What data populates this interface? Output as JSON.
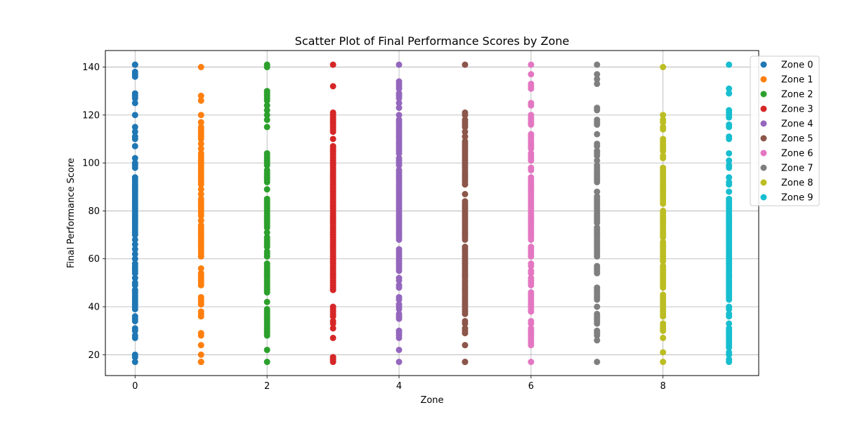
{
  "chart_data": {
    "type": "scatter",
    "title": "Scatter Plot of Final Performance Scores by Zone",
    "xlabel": "Zone",
    "ylabel": "Final Performance Score",
    "xlim": [
      -0.45,
      9.45
    ],
    "ylim": [
      11.3,
      146.9
    ],
    "xticks": [
      0,
      2,
      4,
      6,
      8
    ],
    "yticks": [
      20,
      40,
      60,
      80,
      100,
      120,
      140
    ],
    "grid": true,
    "legend_position": "outside-top-right",
    "series": [
      {
        "name": "Zone 0",
        "color": "#1f77b4",
        "x": 0,
        "y": [
          141,
          141,
          138,
          137,
          136,
          129,
          128,
          127,
          125,
          120,
          115,
          113,
          111,
          110,
          107,
          102,
          100,
          99,
          98,
          94,
          93,
          92,
          91,
          90,
          89,
          88,
          87,
          86,
          85,
          84,
          83,
          82,
          81,
          80,
          79,
          78,
          77,
          76,
          75,
          74,
          73,
          72,
          71,
          70,
          68,
          66,
          64,
          62,
          60,
          58,
          57,
          56,
          55,
          54,
          52,
          50,
          49,
          47,
          46,
          45,
          44,
          43,
          42,
          41,
          40,
          39,
          36,
          35,
          34,
          31,
          30,
          28,
          27,
          20,
          19,
          17
        ]
      },
      {
        "name": "Zone 1",
        "color": "#ff7f0e",
        "x": 1,
        "y": [
          140,
          128,
          126,
          120,
          117,
          115,
          114,
          113,
          112,
          111,
          110,
          108,
          106,
          104,
          103,
          102,
          101,
          100,
          99,
          98,
          97,
          96,
          95,
          94,
          93,
          92,
          91,
          89,
          87,
          85,
          84,
          83,
          82,
          81,
          80,
          79,
          78,
          76,
          74,
          73,
          72,
          71,
          70,
          69,
          68,
          67,
          66,
          65,
          64,
          63,
          62,
          61,
          56,
          54,
          53,
          52,
          51,
          50,
          49,
          44,
          43,
          42,
          41,
          38,
          37,
          36,
          29,
          28,
          24,
          20,
          17,
          17
        ]
      },
      {
        "name": "Zone 2",
        "color": "#2ca02c",
        "x": 2,
        "y": [
          141,
          140,
          130,
          129,
          128,
          127,
          126,
          124,
          122,
          120,
          118,
          115,
          104,
          103,
          102,
          101,
          100,
          99,
          97,
          96,
          95,
          94,
          93,
          92,
          89,
          85,
          84,
          83,
          82,
          81,
          80,
          79,
          78,
          77,
          76,
          75,
          74,
          73,
          71,
          69,
          68,
          67,
          66,
          65,
          63,
          62,
          61,
          58,
          57,
          56,
          55,
          54,
          53,
          52,
          51,
          50,
          49,
          48,
          47,
          46,
          42,
          39,
          38,
          37,
          36,
          35,
          34,
          33,
          32,
          31,
          30,
          29,
          28,
          22,
          17
        ]
      },
      {
        "name": "Zone 3",
        "color": "#d62728",
        "x": 3,
        "y": [
          141,
          132,
          121,
          120,
          119,
          118,
          117,
          116,
          115,
          114,
          113,
          110,
          107,
          106,
          105,
          104,
          103,
          102,
          101,
          100,
          99,
          98,
          97,
          96,
          95,
          94,
          93,
          92,
          91,
          90,
          89,
          88,
          87,
          86,
          85,
          84,
          83,
          82,
          81,
          80,
          79,
          78,
          77,
          76,
          75,
          74,
          73,
          72,
          71,
          70,
          69,
          68,
          67,
          66,
          65,
          64,
          63,
          62,
          61,
          60,
          59,
          58,
          57,
          56,
          55,
          54,
          53,
          52,
          51,
          50,
          49,
          48,
          47,
          40,
          39,
          38,
          37,
          36,
          34,
          33,
          31,
          27,
          19,
          18,
          17
        ]
      },
      {
        "name": "Zone 4",
        "color": "#9467bd",
        "x": 4,
        "y": [
          141,
          134,
          133,
          132,
          131,
          129,
          128,
          127,
          125,
          123,
          120,
          118,
          117,
          116,
          115,
          114,
          113,
          112,
          111,
          110,
          109,
          108,
          107,
          106,
          105,
          104,
          102,
          101,
          100,
          99,
          97,
          96,
          95,
          94,
          93,
          92,
          91,
          90,
          89,
          88,
          87,
          86,
          85,
          84,
          83,
          82,
          81,
          80,
          79,
          78,
          77,
          76,
          75,
          74,
          73,
          72,
          71,
          70,
          69,
          68,
          64,
          63,
          62,
          61,
          60,
          59,
          58,
          57,
          56,
          55,
          52,
          51,
          49,
          48,
          44,
          43,
          41,
          40,
          39,
          37,
          36,
          35,
          30,
          29,
          28,
          27,
          22,
          17
        ]
      },
      {
        "name": "Zone 5",
        "color": "#8c564b",
        "x": 5,
        "y": [
          141,
          121,
          120,
          118,
          117,
          116,
          115,
          113,
          111,
          109,
          108,
          107,
          106,
          105,
          104,
          103,
          102,
          101,
          100,
          99,
          98,
          97,
          96,
          95,
          94,
          93,
          92,
          91,
          87,
          84,
          83,
          82,
          81,
          80,
          79,
          78,
          77,
          76,
          75,
          74,
          73,
          72,
          71,
          70,
          69,
          68,
          65,
          64,
          63,
          62,
          61,
          60,
          59,
          58,
          57,
          56,
          55,
          54,
          53,
          52,
          51,
          50,
          49,
          48,
          47,
          46,
          45,
          44,
          43,
          42,
          41,
          40,
          39,
          38,
          37,
          34,
          33,
          31,
          30,
          29,
          24,
          17,
          17
        ]
      },
      {
        "name": "Zone 6",
        "color": "#e377c2",
        "x": 6,
        "y": [
          141,
          137,
          133,
          132,
          131,
          125,
          124,
          120,
          119,
          118,
          117,
          116,
          112,
          111,
          110,
          109,
          108,
          107,
          106,
          104,
          103,
          102,
          101,
          98,
          97,
          94,
          93,
          92,
          91,
          90,
          89,
          88,
          87,
          86,
          85,
          84,
          83,
          82,
          81,
          80,
          79,
          78,
          77,
          76,
          75,
          74,
          73,
          72,
          71,
          70,
          69,
          68,
          65,
          64,
          63,
          62,
          61,
          58,
          57,
          55,
          54,
          52,
          51,
          50,
          49,
          46,
          45,
          44,
          43,
          42,
          41,
          40,
          39,
          38,
          34,
          33,
          31,
          30,
          29,
          28,
          27,
          26,
          25,
          24,
          17
        ]
      },
      {
        "name": "Zone 7",
        "color": "#7f7f7f",
        "x": 7,
        "y": [
          141,
          137,
          135,
          133,
          123,
          122,
          118,
          117,
          116,
          112,
          108,
          107,
          105,
          104,
          103,
          101,
          99,
          98,
          97,
          96,
          95,
          94,
          93,
          92,
          88,
          86,
          85,
          84,
          83,
          82,
          81,
          80,
          79,
          78,
          77,
          76,
          75,
          73,
          72,
          71,
          70,
          69,
          68,
          67,
          66,
          65,
          64,
          63,
          62,
          61,
          57,
          56,
          55,
          54,
          48,
          47,
          46,
          45,
          44,
          43,
          40,
          37,
          36,
          35,
          34,
          33,
          30,
          29,
          28,
          26,
          17
        ]
      },
      {
        "name": "Zone 8",
        "color": "#bcbd22",
        "x": 8,
        "y": [
          140,
          120,
          118,
          117,
          115,
          114,
          110,
          109,
          108,
          107,
          106,
          105,
          103,
          102,
          98,
          97,
          96,
          95,
          94,
          93,
          92,
          91,
          90,
          89,
          88,
          87,
          86,
          85,
          84,
          83,
          80,
          79,
          78,
          77,
          76,
          75,
          74,
          73,
          72,
          71,
          70,
          69,
          67,
          66,
          65,
          64,
          63,
          62,
          61,
          60,
          59,
          57,
          56,
          55,
          54,
          53,
          52,
          51,
          50,
          49,
          48,
          45,
          44,
          43,
          42,
          41,
          40,
          39,
          38,
          37,
          36,
          33,
          32,
          31,
          30,
          27,
          21,
          17
        ]
      },
      {
        "name": "Zone 9",
        "color": "#17becf",
        "x": 9,
        "y": [
          141,
          131,
          129,
          122,
          121,
          120,
          119,
          116,
          115,
          111,
          110,
          104,
          101,
          99,
          98,
          94,
          92,
          91,
          88,
          85,
          84,
          83,
          82,
          81,
          80,
          79,
          78,
          77,
          76,
          75,
          74,
          73,
          72,
          71,
          70,
          69,
          68,
          67,
          66,
          65,
          64,
          63,
          62,
          61,
          60,
          59,
          58,
          57,
          56,
          55,
          54,
          53,
          52,
          51,
          50,
          49,
          48,
          47,
          46,
          45,
          44,
          43,
          40,
          39,
          37,
          36,
          33,
          31,
          30,
          29,
          28,
          27,
          26,
          25,
          24,
          23,
          21,
          20,
          18,
          17
        ]
      }
    ]
  }
}
